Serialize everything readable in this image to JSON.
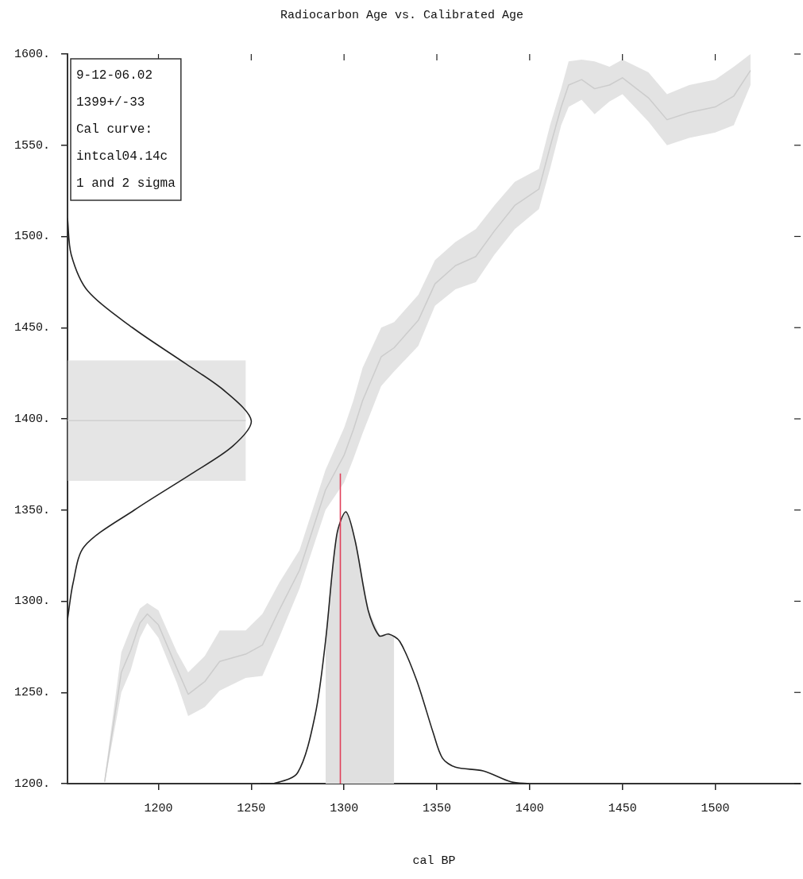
{
  "chart_data": {
    "type": "line",
    "title": "Radiocarbon Age vs. Calibrated Age",
    "xlabel": "cal BP",
    "annotations": [
      "9-12-06.02",
      "1399+/-33",
      "Cal curve:",
      "intcal04.14c",
      "1 and 2 sigma"
    ],
    "xlim": [
      1151,
      1546
    ],
    "ylim": [
      1200,
      1600
    ],
    "xticks": [
      1200,
      1250,
      1300,
      1350,
      1400,
      1450,
      1500
    ],
    "yticks": [
      {
        "value": 1200,
        "label": "1200."
      },
      {
        "value": 1250,
        "label": "1250."
      },
      {
        "value": 1300,
        "label": "1300."
      },
      {
        "value": 1350,
        "label": "1350."
      },
      {
        "value": 1400,
        "label": "1400."
      },
      {
        "value": 1450,
        "label": "1450."
      },
      {
        "value": 1500,
        "label": "1500."
      },
      {
        "value": 1550,
        "label": "1550."
      },
      {
        "value": 1600,
        "label": "1600."
      }
    ],
    "series": [
      {
        "type": "line",
        "color": "#cccccc",
        "x": [
          1171,
          1180,
          1185,
          1190,
          1194,
          1200,
          1210,
          1216,
          1225,
          1233,
          1247,
          1256,
          1265,
          1276,
          1290,
          1300,
          1305,
          1310,
          1320,
          1327,
          1340,
          1349,
          1360,
          1371,
          1381,
          1392,
          1405,
          1411,
          1417,
          1421,
          1428,
          1435,
          1443,
          1450,
          1464,
          1474,
          1486,
          1500,
          1510,
          1519
        ],
        "values": [
          1201,
          1261,
          1273,
          1288,
          1293,
          1287,
          1263,
          1249,
          1256,
          1267,
          1271,
          1276,
          1295,
          1317,
          1361,
          1380,
          1394,
          1410,
          1434,
          1439,
          1454,
          1474,
          1484,
          1489,
          1503,
          1517,
          1526,
          1549,
          1571,
          1583,
          1586,
          1581,
          1583,
          1587,
          1576,
          1564,
          1568,
          1571,
          1577,
          1591
        ],
        "upper": [
          1203,
          1272,
          1285,
          1296,
          1299,
          1295,
          1272,
          1261,
          1270,
          1284,
          1284,
          1293,
          1310,
          1328,
          1372,
          1395,
          1410,
          1428,
          1450,
          1453,
          1468,
          1487,
          1497,
          1504,
          1517,
          1530,
          1537,
          1561,
          1581,
          1596,
          1597,
          1596,
          1593,
          1597,
          1590,
          1578,
          1583,
          1586,
          1593,
          1600
        ],
        "lower": [
          1200,
          1250,
          1262,
          1280,
          1288,
          1280,
          1255,
          1237,
          1242,
          1251,
          1258,
          1259,
          1280,
          1307,
          1350,
          1365,
          1378,
          1392,
          1418,
          1426,
          1440,
          1462,
          1471,
          1475,
          1490,
          1504,
          1515,
          1537,
          1561,
          1571,
          1575,
          1567,
          1574,
          1578,
          1563,
          1550,
          1554,
          1557,
          1561,
          1583
        ]
      },
      {
        "type": "line",
        "color": "#d0d0d0",
        "x": [
          1151,
          1247
        ],
        "values": [
          1399,
          1399
        ],
        "upper": [
          1432,
          1432
        ],
        "lower": [
          1366,
          1366
        ]
      },
      {
        "type": "area",
        "color": "#e0e0e0",
        "x": [
          1290,
          1296,
          1301,
          1306,
          1313,
          1319,
          1324,
          1327
        ],
        "values": [
          1278,
          1336,
          1349,
          1333,
          1295,
          1281,
          1282,
          1280
        ]
      },
      {
        "type": "line",
        "color": "#222222",
        "x": [
          1151,
          1153,
          1162,
          1186,
          1215,
          1236,
          1250,
          1240,
          1218,
          1187,
          1160,
          1154,
          1151
        ],
        "values": [
          1510,
          1490,
          1470,
          1450,
          1430,
          1415,
          1399,
          1385,
          1370,
          1350,
          1330,
          1310,
          1290
        ]
      },
      {
        "type": "line",
        "color": "#222222",
        "x": [
          1255,
          1262,
          1275,
          1284.5,
          1290,
          1296,
          1301,
          1306,
          1313,
          1319,
          1324,
          1330,
          1339,
          1348,
          1353,
          1360,
          1375,
          1390,
          1400
        ],
        "values": [
          1200,
          1200,
          1206,
          1238,
          1278,
          1336,
          1349,
          1333,
          1295,
          1281,
          1282,
          1278,
          1257,
          1228,
          1214,
          1209,
          1207,
          1201,
          1200
        ]
      },
      {
        "type": "line",
        "color": "#e0405a",
        "x": [
          1298,
          1298
        ],
        "values": [
          1200,
          1370
        ]
      }
    ]
  }
}
